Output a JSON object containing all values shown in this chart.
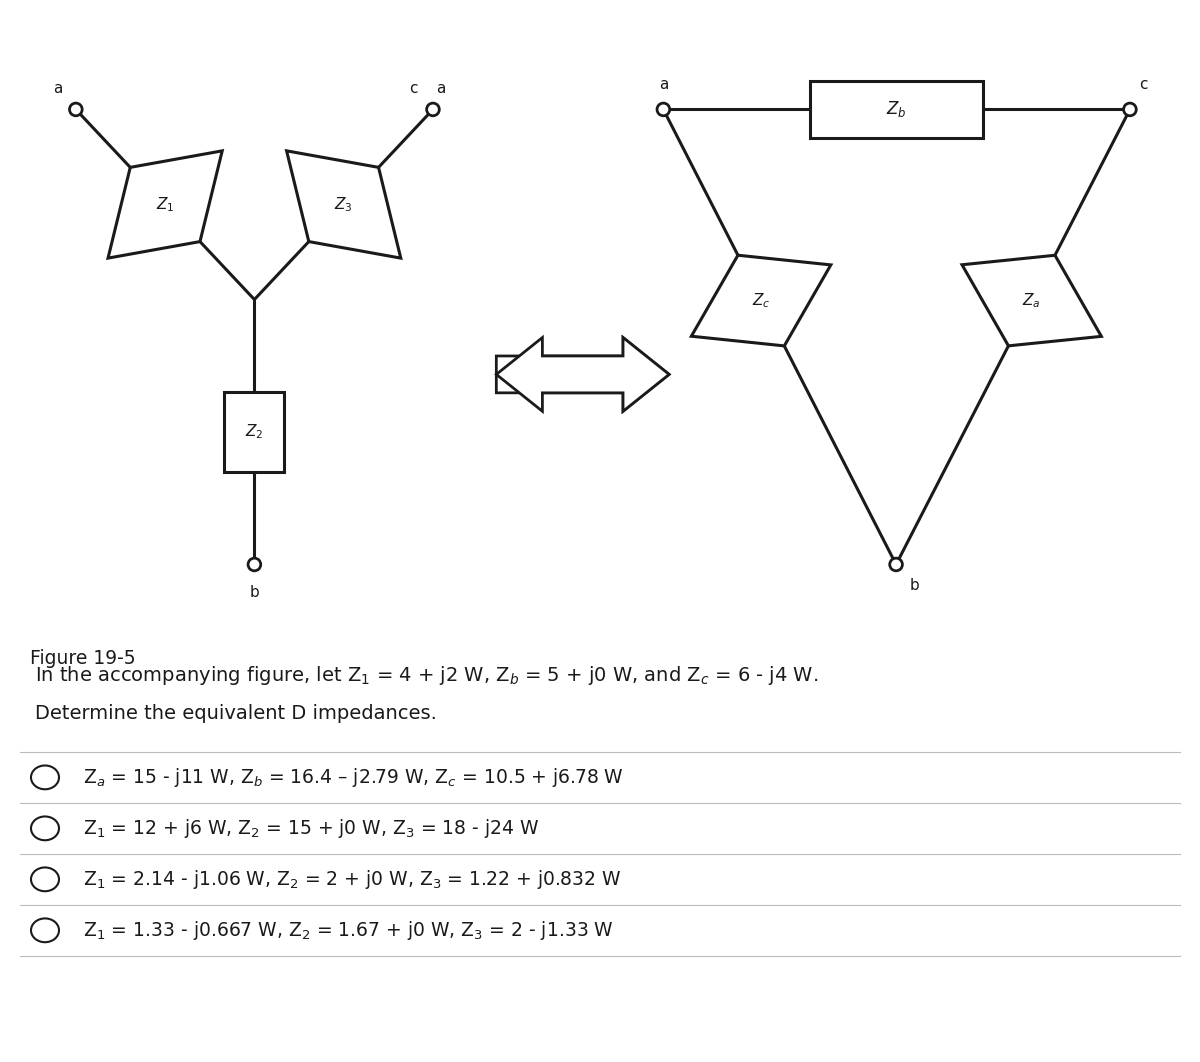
{
  "figure_label": "Figure 19-5",
  "q_line1": "In the accompanying figure, let Z$_1$ = 4 + j2 W, Z$_b$ = 5 + j0 W, and Z$_c$ = 6 - j4 W.",
  "q_line2": "Determine the equivalent D impedances.",
  "options": [
    "Z$_a$ = 15 - j11 W, Z$_b$ = 16.4 – j2.79 W, Z$_c$ = 10.5 + j6.78 W",
    "Z$_1$ = 12 + j6 W, Z$_2$ = 15 + j0 W, Z$_3$ = 18 - j24 W",
    "Z$_1$ = 2.14 - j1.06 W, Z$_2$ = 2 + j0 W, Z$_3$ = 1.22 + j0.832 W",
    "Z$_1$ = 1.33 - j0.667 W, Z$_2$ = 1.67 + j0 W, Z$_3$ = 2 - j1.33 W"
  ],
  "bg_color": "#ffffff",
  "line_color": "#1a1a1a",
  "text_color": "#1a1a1a",
  "font_size": 14,
  "option_font_size": 13.5,
  "circuit_lw": 2.2,
  "node_r": 0.05,
  "diamond_size": 0.68
}
